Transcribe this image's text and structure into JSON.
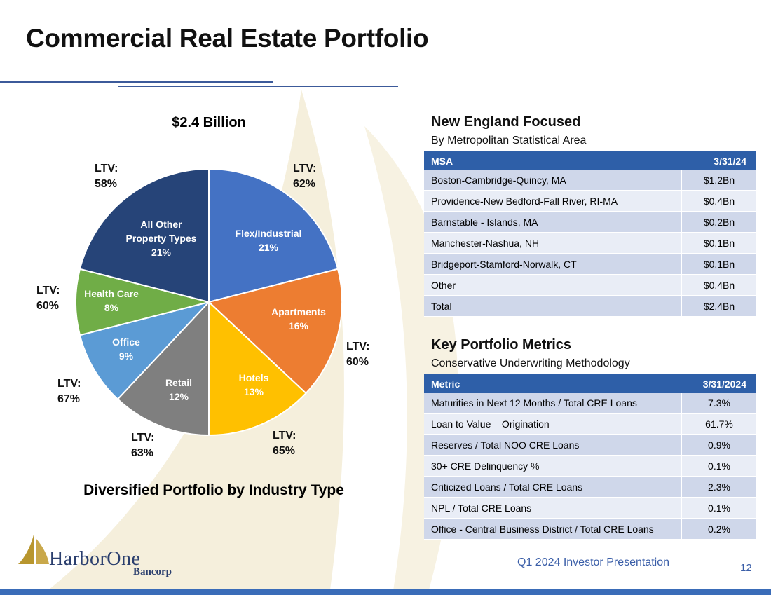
{
  "page": {
    "title": "Commercial Real Estate Portfolio",
    "footer_text": "Q1 2024 Investor Presentation",
    "page_number": "12",
    "logo_name": "HarborOne",
    "logo_sub": "Bancorp"
  },
  "colors": {
    "accent": "#2e5fa8",
    "table_row_dark": "#cfd7ea",
    "table_row_light": "#e9edf6"
  },
  "chart_data": {
    "type": "pie",
    "title": "$2.4 Billion",
    "caption": "Diversified Portfolio by Industry Type",
    "slices": [
      {
        "label": "Flex/Industrial",
        "value": 21,
        "pct_label": "21%",
        "ltv_label": "LTV:",
        "ltv": "62%",
        "color": "#4472c4"
      },
      {
        "label": "Apartments",
        "value": 16,
        "pct_label": "16%",
        "ltv_label": "LTV:",
        "ltv": "60%",
        "color": "#ed7d31"
      },
      {
        "label": "Hotels",
        "value": 13,
        "pct_label": "13%",
        "ltv_label": "LTV:",
        "ltv": "65%",
        "color": "#ffc000"
      },
      {
        "label": "Retail",
        "value": 12,
        "pct_label": "12%",
        "ltv_label": "LTV:",
        "ltv": "63%",
        "color": "#7f7f7f"
      },
      {
        "label": "Office",
        "value": 9,
        "pct_label": "9%",
        "ltv_label": "LTV:",
        "ltv": "67%",
        "color": "#5b9bd5"
      },
      {
        "label": "Health Care",
        "value": 8,
        "pct_label": "8%",
        "ltv_label": "LTV:",
        "ltv": "60%",
        "color": "#70ad47"
      },
      {
        "label": "All Other Property Types",
        "value": 21,
        "pct_label": "21%",
        "ltv_label": "LTV:",
        "ltv": "58%",
        "color": "#264478"
      }
    ]
  },
  "msa_section": {
    "heading": "New England Focused",
    "subheading": "By Metropolitan Statistical Area",
    "columns": [
      "MSA",
      "3/31/24"
    ],
    "rows": [
      {
        "name": "Boston-Cambridge-Quincy, MA",
        "value": "$1.2Bn"
      },
      {
        "name": "Providence-New Bedford-Fall River, RI-MA",
        "value": "$0.4Bn"
      },
      {
        "name": "Barnstable - Islands, MA",
        "value": "$0.2Bn"
      },
      {
        "name": "Manchester-Nashua, NH",
        "value": "$0.1Bn"
      },
      {
        "name": "Bridgeport-Stamford-Norwalk, CT",
        "value": "$0.1Bn"
      },
      {
        "name": "Other",
        "value": "$0.4Bn"
      },
      {
        "name": "Total",
        "value": "$2.4Bn"
      }
    ]
  },
  "metrics_section": {
    "heading": "Key Portfolio Metrics",
    "subheading": "Conservative Underwriting Methodology",
    "columns": [
      "Metric",
      "3/31/2024"
    ],
    "rows": [
      {
        "name": "Maturities in Next 12 Months / Total CRE Loans",
        "value": "7.3%"
      },
      {
        "name": "Loan to Value – Origination",
        "value": "61.7%"
      },
      {
        "name": "Reserves / Total NOO CRE Loans",
        "value": "0.9%"
      },
      {
        "name": "30+ CRE Delinquency %",
        "value": "0.1%"
      },
      {
        "name": "Criticized Loans / Total CRE Loans",
        "value": "2.3%"
      },
      {
        "name": "NPL / Total CRE Loans",
        "value": "0.1%"
      },
      {
        "name": "Office - Central Business District / Total CRE Loans",
        "value": "0.2%"
      }
    ]
  }
}
